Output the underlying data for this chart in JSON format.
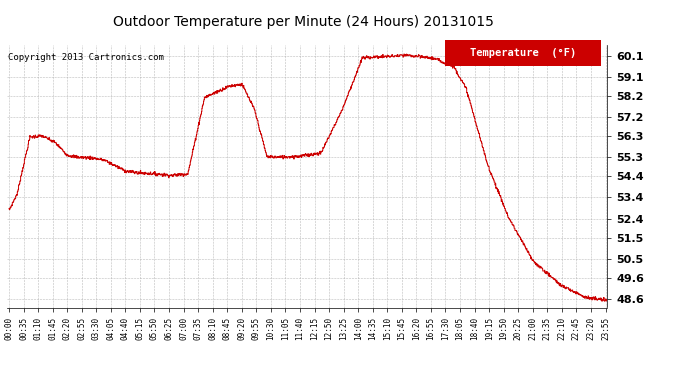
{
  "title": "Outdoor Temperature per Minute (24 Hours) 20131015",
  "copyright_text": "Copyright 2013 Cartronics.com",
  "legend_label": "Temperature  (°F)",
  "line_color": "#cc0000",
  "background_color": "#ffffff",
  "grid_color": "#aaaaaa",
  "yticks": [
    48.6,
    49.6,
    50.5,
    51.5,
    52.4,
    53.4,
    54.4,
    55.3,
    56.3,
    57.2,
    58.2,
    59.1,
    60.1
  ],
  "ymin": 48.2,
  "ymax": 60.6,
  "total_minutes": 1440
}
